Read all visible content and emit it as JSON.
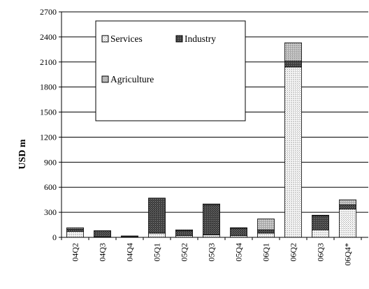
{
  "chart_data": {
    "type": "bar",
    "stacked": true,
    "title": "",
    "xlabel": "",
    "ylabel": "USD m",
    "ylim": [
      0,
      2700
    ],
    "yticks": [
      0,
      300,
      600,
      900,
      1200,
      1500,
      1800,
      2100,
      2400,
      2700
    ],
    "grid": "horizontal",
    "legend_position": "top-left",
    "categories": [
      "04Q2",
      "04Q3",
      "04Q4",
      "05Q1",
      "05Q2",
      "05Q3",
      "05Q4",
      "06Q1",
      "06Q2",
      "06Q3",
      "06Q4*"
    ],
    "series": [
      {
        "name": "Services",
        "color": "#f2f2f2",
        "values": [
          70,
          5,
          5,
          50,
          20,
          30,
          20,
          50,
          2040,
          90,
          340
        ]
      },
      {
        "name": "Industry",
        "color": "#555555",
        "values": [
          30,
          75,
          12,
          420,
          60,
          360,
          90,
          40,
          70,
          170,
          50
        ]
      },
      {
        "name": "Agriculture",
        "color": "#b5b5b5",
        "values": [
          15,
          0,
          0,
          0,
          10,
          10,
          5,
          130,
          220,
          5,
          60
        ]
      }
    ]
  }
}
